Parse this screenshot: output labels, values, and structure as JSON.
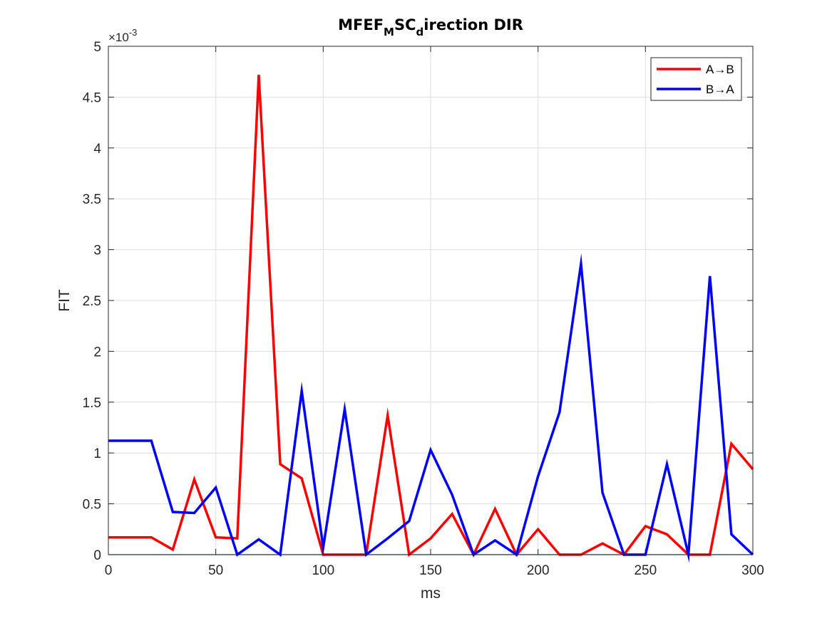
{
  "chart_data": {
    "type": "line",
    "title_parts": {
      "part1": "MFEF",
      "sub1": "M",
      "part2": "SC",
      "sub2": "d",
      "part3": "irection DIR"
    },
    "xlabel": "ms",
    "ylabel": "FIT",
    "y_exponent_label": "×10",
    "y_exponent_power": "-3",
    "xlim": [
      0,
      300
    ],
    "ylim": [
      0,
      5
    ],
    "x_ticks": [
      0,
      50,
      100,
      150,
      200,
      250,
      300
    ],
    "x_tick_labels": [
      "0",
      "50",
      "100",
      "150",
      "200",
      "250",
      "300"
    ],
    "y_ticks": [
      0,
      0.5,
      1,
      1.5,
      2,
      2.5,
      3,
      3.5,
      4,
      4.5,
      5
    ],
    "y_tick_labels": [
      "0",
      "0.5",
      "1",
      "1.5",
      "2",
      "2.5",
      "3",
      "3.5",
      "4",
      "4.5",
      "5"
    ],
    "grid": true,
    "legend_position": "top-right",
    "x": [
      0,
      10,
      20,
      30,
      40,
      50,
      60,
      70,
      80,
      90,
      100,
      110,
      120,
      130,
      140,
      150,
      160,
      170,
      180,
      190,
      200,
      210,
      220,
      230,
      240,
      250,
      260,
      270,
      280,
      290,
      300
    ],
    "series": [
      {
        "name": "A→B",
        "color": "#ff0000",
        "values": [
          0.17,
          0.17,
          0.17,
          0.05,
          0.74,
          0.17,
          0.16,
          4.72,
          0.89,
          0.75,
          0.0,
          0.0,
          0.0,
          1.37,
          0.0,
          0.16,
          0.4,
          0.0,
          0.45,
          0.0,
          0.25,
          0.0,
          0.0,
          0.11,
          0.0,
          0.28,
          0.2,
          0.0,
          0.0,
          1.09,
          0.84
        ]
      },
      {
        "name": "B→A",
        "color": "#0000ff",
        "values": [
          1.12,
          1.12,
          1.12,
          0.42,
          0.41,
          0.66,
          0.0,
          0.15,
          0.0,
          1.61,
          0.07,
          1.43,
          0.0,
          0.16,
          0.33,
          1.03,
          0.59,
          0.0,
          0.14,
          0.0,
          0.77,
          1.4,
          2.86,
          0.61,
          0.0,
          0.0,
          0.89,
          0.0,
          2.74,
          0.2,
          0.0
        ]
      }
    ],
    "baseline": {
      "value": 0,
      "color": "#0072bd"
    }
  }
}
